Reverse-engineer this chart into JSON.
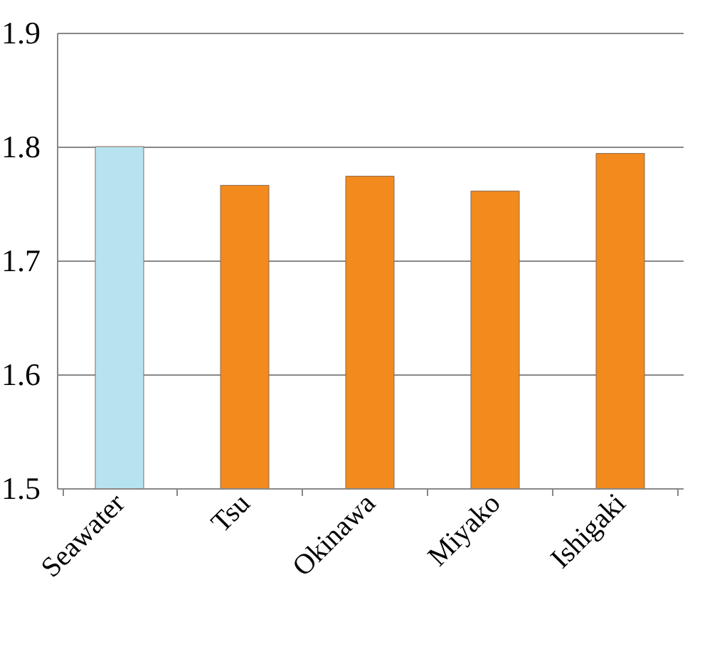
{
  "chart_data": {
    "type": "bar",
    "categories": [
      "Seawater",
      "Tsu",
      "Okinawa",
      "Miyako",
      "Ishigaki"
    ],
    "values": [
      1.8,
      1.766,
      1.774,
      1.761,
      1.794
    ],
    "colors": [
      "#b7e3f0",
      "#f28a1e",
      "#f28a1e",
      "#f28a1e",
      "#f28a1e"
    ],
    "ylim": [
      1.5,
      1.9
    ],
    "yticks": [
      1.5,
      1.6,
      1.7,
      1.8,
      1.9
    ],
    "grid": "y"
  }
}
